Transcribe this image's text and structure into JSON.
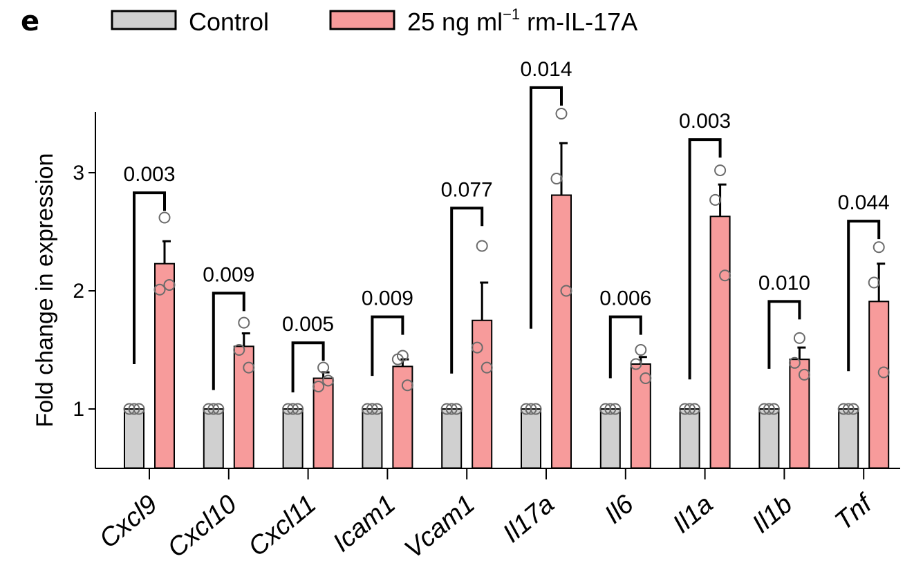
{
  "panel_label": "e",
  "legend": {
    "control_label": "Control",
    "treated_label_main": "25 ng ml",
    "treated_label_sup": "−1",
    "treated_label_rest": " rm-IL-17A"
  },
  "colors": {
    "control": "#d0d0d0",
    "treated": "#f79b9b",
    "dot_stroke": "#6b6b6b",
    "line": "#000000"
  },
  "chart_data": {
    "type": "bar",
    "title": "",
    "xlabel": "",
    "ylabel": "Fold change in expression",
    "ylim": [
      0.5,
      3.5
    ],
    "yticks": [
      1,
      2,
      3
    ],
    "legend_position": "top",
    "grid": false,
    "categories": [
      "Cxcl9",
      "Cxcl10",
      "Cxcl11",
      "Icam1",
      "Vcam1",
      "Il17a",
      "Il6",
      "Il1a",
      "Il1b",
      "Tnf"
    ],
    "series": [
      {
        "name": "Control",
        "values": [
          1,
          1,
          1,
          1,
          1,
          1,
          1,
          1,
          1,
          1
        ],
        "points": [
          [
            1,
            1,
            1
          ],
          [
            1,
            1,
            1
          ],
          [
            1,
            1,
            1
          ],
          [
            1,
            1,
            1
          ],
          [
            1,
            1,
            1
          ],
          [
            1,
            1,
            1
          ],
          [
            1,
            1,
            1
          ],
          [
            1,
            1,
            1
          ],
          [
            1,
            1,
            1
          ],
          [
            1,
            1,
            1
          ]
        ]
      },
      {
        "name": "25 ng ml−1 rm-IL-17A",
        "values": [
          2.23,
          1.53,
          1.26,
          1.36,
          1.75,
          2.81,
          1.38,
          2.63,
          1.42,
          1.91
        ],
        "error": [
          0.19,
          0.11,
          0.05,
          0.06,
          0.32,
          0.44,
          0.06,
          0.27,
          0.1,
          0.32
        ],
        "points": [
          [
            2.62,
            2.01,
            2.05
          ],
          [
            1.73,
            1.5,
            1.35
          ],
          [
            1.35,
            1.19,
            1.24
          ],
          [
            1.45,
            1.42,
            1.2
          ],
          [
            2.38,
            1.52,
            1.35
          ],
          [
            3.5,
            2.95,
            2.0
          ],
          [
            1.5,
            1.38,
            1.26
          ],
          [
            3.02,
            2.77,
            2.13
          ],
          [
            1.6,
            1.39,
            1.29
          ],
          [
            2.37,
            2.07,
            1.31
          ]
        ]
      }
    ],
    "annotations": [
      {
        "category": "Cxcl9",
        "p": "0.003",
        "bracket_y": 2.83,
        "left_y": 1.38
      },
      {
        "category": "Cxcl10",
        "p": "0.009",
        "bracket_y": 1.98,
        "left_y": 1.16
      },
      {
        "category": "Cxcl11",
        "p": "0.005",
        "bracket_y": 1.56,
        "left_y": 1.14
      },
      {
        "category": "Icam1",
        "p": "0.009",
        "bracket_y": 1.78,
        "left_y": 1.28
      },
      {
        "category": "Vcam1",
        "p": "0.077",
        "bracket_y": 2.7,
        "left_y": 1.3
      },
      {
        "category": "Il17a",
        "p": "0.014",
        "bracket_y": 3.72,
        "left_y": 1.68
      },
      {
        "category": "Il6",
        "p": "0.006",
        "bracket_y": 1.78,
        "left_y": 1.26
      },
      {
        "category": "Il1a",
        "p": "0.003",
        "bracket_y": 3.28,
        "left_y": 1.25
      },
      {
        "category": "Il1b",
        "p": "0.010",
        "bracket_y": 1.91,
        "left_y": 1.34
      },
      {
        "category": "Tnf",
        "p": "0.044",
        "bracket_y": 2.59,
        "left_y": 1.32
      }
    ]
  }
}
